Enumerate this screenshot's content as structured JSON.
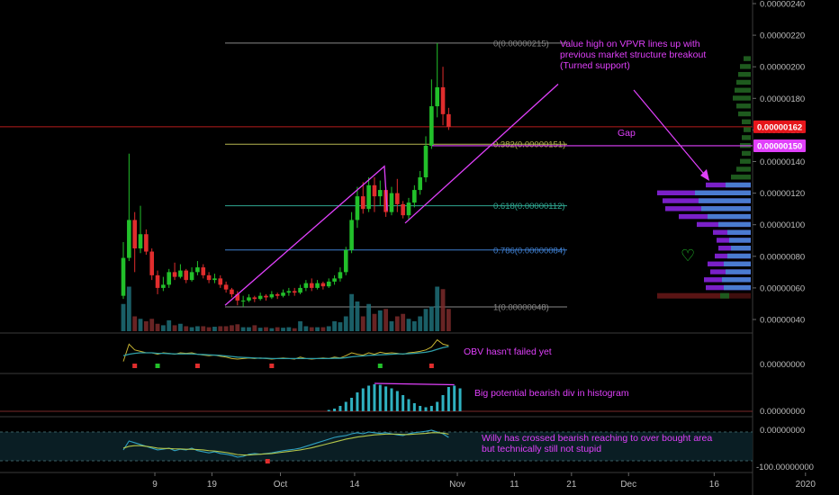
{
  "chart_data": {
    "type": "candlestick",
    "colors": {
      "up": "#22c02a",
      "down": "#e02d2d",
      "annotation": "#e040fb",
      "volume_up": "#1f6f78",
      "volume_down": "#7a2a2a",
      "price_tag_current": "#e6161b",
      "price_tag_gap": "#e040fb",
      "vpvr_blue": "#4a7bd0",
      "vpvr_purple": "#7a20c8",
      "vpvr_green": "#1e5a1e",
      "vpvr_red": "#5a1414",
      "grid": "#262626",
      "fib_0": "#888888",
      "fib_0382": "#b5b550",
      "fib_0618": "#2fa892",
      "fib_0786": "#3f7fd0",
      "fib_1": "#888888",
      "current_price_line": "#b71c1c",
      "obv": "#c8b432",
      "obv_ma": "#2f9fa8",
      "histogram": "#2fb1c0",
      "willy": "#2fa0c0",
      "willy_signal": "#b5c84a"
    },
    "x_ticks": [
      {
        "label": "9",
        "i": 3
      },
      {
        "label": "19",
        "i": 13
      },
      {
        "label": "Oct",
        "i": 25
      },
      {
        "label": "14",
        "i": 38
      },
      {
        "label": "Nov",
        "i": 56
      },
      {
        "label": "11",
        "i": 66
      },
      {
        "label": "21",
        "i": 76
      },
      {
        "label": "Dec",
        "i": 86
      },
      {
        "label": "16",
        "i": 101
      },
      {
        "label": "2020",
        "i": 117
      }
    ],
    "price_axis": {
      "min": 3e-07,
      "max": 2.4e-06,
      "ticks": [
        "0.00000040",
        "0.00000060",
        "0.00000080",
        "0.00000100",
        "0.00000120",
        "0.00000140",
        "0.00000160",
        "0.00000180",
        "0.00000200",
        "0.00000220",
        "0.00000240"
      ]
    },
    "price_tags": [
      {
        "label": "0.00000162",
        "value": 1.62e-06,
        "kind": "current"
      },
      {
        "label": "0.00000150",
        "value": 1.5e-06,
        "kind": "gap"
      }
    ],
    "fib_levels": [
      {
        "label": "0(0.00000215)",
        "value": 2.15e-06,
        "key": "fib_0"
      },
      {
        "label": "0.382(0.00000151)",
        "value": 1.51e-06,
        "key": "fib_0382"
      },
      {
        "label": "0.618(0.00000112)",
        "value": 1.12e-06,
        "key": "fib_0618"
      },
      {
        "label": "0.786(0.00000084)",
        "value": 8.4e-07,
        "key": "fib_0786"
      },
      {
        "label": "1(0.00000048)",
        "value": 4.8e-07,
        "key": "fib_1"
      }
    ],
    "candles": [
      [
        5.5e-07,
        7.9e-07,
        5.3e-07,
        8.9e-07
      ],
      [
        7.9e-07,
        1.03e-06,
        7.7e-07,
        1.45e-06
      ],
      [
        1.03e-06,
        8.5e-07,
        7e-07,
        1.08e-06
      ],
      [
        8.5e-07,
        9.4e-07,
        8.2e-07,
        1.12e-06
      ],
      [
        9.4e-07,
        8.3e-07,
        8.1e-07,
        9.7e-07
      ],
      [
        8.3e-07,
        6.8e-07,
        6.5e-07,
        8.5e-07
      ],
      [
        6.8e-07,
        6e-07,
        5.6e-07,
        7.1e-07
      ],
      [
        6e-07,
        6.2e-07,
        5.8e-07,
        6.7e-07
      ],
      [
        6.2e-07,
        7e-07,
        6e-07,
        7.2e-07
      ],
      [
        7e-07,
        6.7e-07,
        6.5e-07,
        7.6e-07
      ],
      [
        6.7e-07,
        7.1e-07,
        6.6e-07,
        7.5e-07
      ],
      [
        7.1e-07,
        6.5e-07,
        6.3e-07,
        7.2e-07
      ],
      [
        6.5e-07,
        7e-07,
        6.4e-07,
        7.3e-07
      ],
      [
        7e-07,
        7.3e-07,
        6.8e-07,
        7.7e-07
      ],
      [
        7.3e-07,
        6.8e-07,
        6.6e-07,
        7.5e-07
      ],
      [
        6.8e-07,
        6.5e-07,
        6.3e-07,
        7e-07
      ],
      [
        6.5e-07,
        6.6e-07,
        6.3e-07,
        6.9e-07
      ],
      [
        6.6e-07,
        6.2e-07,
        6e-07,
        6.8e-07
      ],
      [
        6.2e-07,
        5.9e-07,
        5.7e-07,
        6.4e-07
      ],
      [
        5.9e-07,
        5.6e-07,
        5.4e-07,
        6e-07
      ],
      [
        5.6e-07,
        5.2e-07,
        4.9e-07,
        5.8e-07
      ],
      [
        5.2e-07,
        5.2e-07,
        4.8e-07,
        5.5e-07
      ],
      [
        5.2e-07,
        5.4e-07,
        5.1e-07,
        5.6e-07
      ],
      [
        5.4e-07,
        5.3e-07,
        5.1e-07,
        5.5e-07
      ],
      [
        5.3e-07,
        5.5e-07,
        5.2e-07,
        5.7e-07
      ],
      [
        5.5e-07,
        5.4e-07,
        5.2e-07,
        5.6e-07
      ],
      [
        5.4e-07,
        5.6e-07,
        5.3e-07,
        5.8e-07
      ],
      [
        5.6e-07,
        5.5e-07,
        5.3e-07,
        5.7e-07
      ],
      [
        5.5e-07,
        5.7e-07,
        5.4e-07,
        5.9e-07
      ],
      [
        5.7e-07,
        5.8e-07,
        5.5e-07,
        6e-07
      ],
      [
        5.8e-07,
        5.7e-07,
        5.5e-07,
        6e-07
      ],
      [
        5.7e-07,
        6e-07,
        5.6e-07,
        6.2e-07
      ],
      [
        6e-07,
        6.3e-07,
        5.8e-07,
        6.5e-07
      ],
      [
        6.3e-07,
        6e-07,
        5.8e-07,
        6.6e-07
      ],
      [
        6e-07,
        6.3e-07,
        5.9e-07,
        6.5e-07
      ],
      [
        6.3e-07,
        6.1e-07,
        5.9e-07,
        6.4e-07
      ],
      [
        6.1e-07,
        6.4e-07,
        6e-07,
        6.6e-07
      ],
      [
        6.4e-07,
        6.6e-07,
        6.2e-07,
        6.8e-07
      ],
      [
        6.6e-07,
        7e-07,
        6.4e-07,
        7.3e-07
      ],
      [
        7e-07,
        8.4e-07,
        6.8e-07,
        8.6e-07
      ],
      [
        8.4e-07,
        1.03e-06,
        8.2e-07,
        1.08e-06
      ],
      [
        1.03e-06,
        1.18e-06,
        9.8e-07,
        1.24e-06
      ],
      [
        1.18e-06,
        1.1e-06,
        1.07e-06,
        1.27e-06
      ],
      [
        1.1e-06,
        1.25e-06,
        1.08e-06,
        1.3e-06
      ],
      [
        1.25e-06,
        1.18e-06,
        1.08e-06,
        1.3e-06
      ],
      [
        1.18e-06,
        1.22e-06,
        1.12e-06,
        1.28e-06
      ],
      [
        1.22e-06,
        1.08e-06,
        1.05e-06,
        1.24e-06
      ],
      [
        1.08e-06,
        1.2e-06,
        1.06e-06,
        1.24e-06
      ],
      [
        1.2e-06,
        1.13e-06,
        1.08e-06,
        1.29e-06
      ],
      [
        1.13e-06,
        1.06e-06,
        1.04e-06,
        1.15e-06
      ],
      [
        1.06e-06,
        1.14e-06,
        1.03e-06,
        1.17e-06
      ],
      [
        1.14e-06,
        1.22e-06,
        1.11e-06,
        1.25e-06
      ],
      [
        1.22e-06,
        1.3e-06,
        1.19e-06,
        1.34e-06
      ],
      [
        1.3e-06,
        1.5e-06,
        1.27e-06,
        1.56e-06
      ],
      [
        1.5e-06,
        1.75e-06,
        1.48e-06,
        1.92e-06
      ],
      [
        1.75e-06,
        1.87e-06,
        1.68e-06,
        2.15e-06
      ],
      [
        1.87e-06,
        1.7e-06,
        1.63e-06,
        2e-06
      ],
      [
        1.7e-06,
        1.62e-06,
        1.6e-06,
        1.74e-06
      ]
    ],
    "volumes": [
      0.55,
      0.9,
      0.3,
      0.25,
      0.2,
      0.25,
      0.15,
      0.12,
      0.22,
      0.12,
      0.15,
      0.1,
      0.08,
      0.1,
      0.1,
      0.08,
      0.09,
      0.1,
      0.1,
      0.12,
      0.14,
      0.08,
      0.08,
      0.12,
      0.07,
      0.08,
      0.06,
      0.08,
      0.07,
      0.08,
      0.06,
      0.2,
      0.1,
      0.08,
      0.08,
      0.08,
      0.1,
      0.2,
      0.18,
      0.3,
      0.75,
      0.6,
      0.3,
      0.55,
      0.35,
      0.42,
      0.45,
      0.2,
      0.3,
      0.35,
      0.25,
      0.2,
      0.3,
      0.45,
      0.5,
      0.9,
      0.85,
      0.45
    ],
    "vpvr": [
      {
        "value": 2.05e-06,
        "w": 8,
        "c": "vpvr_green"
      },
      {
        "value": 2e-06,
        "w": 12,
        "c": "vpvr_green"
      },
      {
        "value": 1.95e-06,
        "w": 14,
        "c": "vpvr_green"
      },
      {
        "value": 1.9e-06,
        "w": 16,
        "c": "vpvr_green"
      },
      {
        "value": 1.85e-06,
        "w": 18,
        "c": "vpvr_green"
      },
      {
        "value": 1.8e-06,
        "w": 20,
        "c": "vpvr_green"
      },
      {
        "value": 1.75e-06,
        "w": 16,
        "c": "vpvr_green"
      },
      {
        "value": 1.7e-06,
        "w": 14,
        "c": "vpvr_green"
      },
      {
        "value": 1.65e-06,
        "w": 10,
        "c": "vpvr_green"
      },
      {
        "value": 1.6e-06,
        "w": 8,
        "c": "vpvr_green"
      },
      {
        "value": 1.55e-06,
        "w": 10,
        "c": "vpvr_green"
      },
      {
        "value": 1.5e-06,
        "w": 12,
        "c": "vpvr_green"
      },
      {
        "value": 1.45e-06,
        "w": 10,
        "c": "vpvr_green"
      },
      {
        "value": 1.4e-06,
        "w": 12,
        "c": "vpvr_green"
      },
      {
        "value": 1.35e-06,
        "w": 16,
        "c": "vpvr_green"
      },
      {
        "value": 1.3e-06,
        "w": 22,
        "c": "vpvr_green"
      },
      {
        "value": 1.25e-06,
        "w": 50,
        "c": "vpvr_purple",
        "b": 28
      },
      {
        "value": 1.2e-06,
        "w": 104,
        "c": "vpvr_purple",
        "b": 62
      },
      {
        "value": 1.15e-06,
        "w": 98,
        "c": "vpvr_purple",
        "b": 58
      },
      {
        "value": 1.1e-06,
        "w": 95,
        "c": "vpvr_purple",
        "b": 55
      },
      {
        "value": 1.05e-06,
        "w": 80,
        "c": "vpvr_purple",
        "b": 48
      },
      {
        "value": 1e-06,
        "w": 60,
        "c": "vpvr_purple",
        "b": 36
      },
      {
        "value": 9.5e-07,
        "w": 42,
        "c": "vpvr_purple",
        "b": 26
      },
      {
        "value": 9e-07,
        "w": 38,
        "c": "vpvr_purple",
        "b": 24
      },
      {
        "value": 8.5e-07,
        "w": 36,
        "c": "vpvr_purple",
        "b": 22
      },
      {
        "value": 8e-07,
        "w": 40,
        "c": "vpvr_purple",
        "b": 26
      },
      {
        "value": 7.5e-07,
        "w": 48,
        "c": "vpvr_purple",
        "b": 30
      },
      {
        "value": 7e-07,
        "w": 45,
        "c": "vpvr_purple",
        "b": 28
      },
      {
        "value": 6.5e-07,
        "w": 52,
        "c": "vpvr_purple",
        "b": 32
      },
      {
        "value": 6e-07,
        "w": 50,
        "c": "vpvr_purple",
        "b": 30
      },
      {
        "value": 5.5e-07,
        "w": 104,
        "c": "vpvr_red",
        "b": 30,
        "g": 24
      }
    ],
    "vpvr_heart": "♡",
    "obv": {
      "axis_label": "0.00000000",
      "annotation": "OBV hasn't failed yet",
      "series": [
        0.2,
        0.8,
        0.6,
        0.55,
        0.5,
        0.5,
        0.45,
        0.5,
        0.48,
        0.45,
        0.5,
        0.48,
        0.5,
        0.45,
        0.42,
        0.4,
        0.42,
        0.38,
        0.35,
        0.3,
        0.28,
        0.3,
        0.32,
        0.3,
        0.32,
        0.3,
        0.28,
        0.3,
        0.32,
        0.3,
        0.28,
        0.35,
        0.3,
        0.28,
        0.3,
        0.32,
        0.3,
        0.35,
        0.32,
        0.4,
        0.5,
        0.45,
        0.42,
        0.5,
        0.45,
        0.52,
        0.48,
        0.5,
        0.48,
        0.45,
        0.5,
        0.52,
        0.55,
        0.6,
        0.7,
        0.95,
        0.8,
        0.75
      ],
      "ma": [
        0.4,
        0.45,
        0.48,
        0.5,
        0.5,
        0.5,
        0.48,
        0.48,
        0.47,
        0.46,
        0.46,
        0.46,
        0.46,
        0.45,
        0.44,
        0.43,
        0.42,
        0.41,
        0.39,
        0.37,
        0.35,
        0.34,
        0.33,
        0.32,
        0.31,
        0.31,
        0.3,
        0.3,
        0.3,
        0.3,
        0.3,
        0.3,
        0.3,
        0.3,
        0.3,
        0.3,
        0.3,
        0.31,
        0.31,
        0.33,
        0.36,
        0.38,
        0.39,
        0.41,
        0.42,
        0.43,
        0.44,
        0.45,
        0.46,
        0.46,
        0.47,
        0.48,
        0.5,
        0.52,
        0.56,
        0.62,
        0.68,
        0.72
      ],
      "markers": [
        {
          "i": 2,
          "c": "down"
        },
        {
          "i": 6,
          "c": "up"
        },
        {
          "i": 13,
          "c": "down"
        },
        {
          "i": 26,
          "c": "down"
        },
        {
          "i": 45,
          "c": "up"
        },
        {
          "i": 54,
          "c": "down"
        }
      ]
    },
    "histogram": {
      "axis_label": "0.00000000",
      "annotation": "Big potential bearish div in histogram",
      "start": 36,
      "values": [
        0.05,
        0.1,
        0.2,
        0.35,
        0.5,
        0.7,
        0.85,
        0.95,
        1.0,
        0.98,
        0.92,
        0.85,
        0.75,
        0.6,
        0.45,
        0.3,
        0.2,
        0.15,
        0.2,
        0.35,
        0.6,
        0.9,
        0.95,
        0.85
      ]
    },
    "willy": {
      "axis_label_top": "0.00000000",
      "axis_label_bottom": "-100.00000000",
      "annotation_line1": "Willy has crossed bearish reaching to over bought area",
      "annotation_line2": "but technically still not stupid",
      "series": [
        -60,
        -35,
        -40,
        -45,
        -50,
        -55,
        -60,
        -58,
        -55,
        -62,
        -58,
        -60,
        -55,
        -62,
        -65,
        -68,
        -65,
        -70,
        -72,
        -75,
        -80,
        -78,
        -72,
        -70,
        -72,
        -70,
        -68,
        -65,
        -62,
        -60,
        -58,
        -55,
        -50,
        -45,
        -40,
        -35,
        -30,
        -25,
        -22,
        -20,
        -15,
        -12,
        -15,
        -10,
        -12,
        -14,
        -12,
        -15,
        -18,
        -20,
        -15,
        -12,
        -10,
        -8,
        -5,
        -10,
        -15,
        -25
      ],
      "signal": [
        -55,
        -50,
        -48,
        -48,
        -50,
        -52,
        -55,
        -56,
        -56,
        -57,
        -57,
        -58,
        -58,
        -59,
        -60,
        -62,
        -63,
        -65,
        -67,
        -70,
        -73,
        -74,
        -74,
        -73,
        -72,
        -71,
        -70,
        -68,
        -66,
        -64,
        -62,
        -60,
        -57,
        -54,
        -50,
        -46,
        -42,
        -38,
        -34,
        -30,
        -27,
        -24,
        -22,
        -20,
        -18,
        -17,
        -16,
        -16,
        -16,
        -17,
        -17,
        -16,
        -15,
        -14,
        -12,
        -12,
        -13,
        -16
      ],
      "marker_i": 17
    },
    "annotations": {
      "vpvr_note_line1": "Value high on VPVR lines up with",
      "vpvr_note_line2": "previous market structure breakout",
      "vpvr_note_line3": "(Turned support)",
      "gap_label": "Gap"
    }
  }
}
